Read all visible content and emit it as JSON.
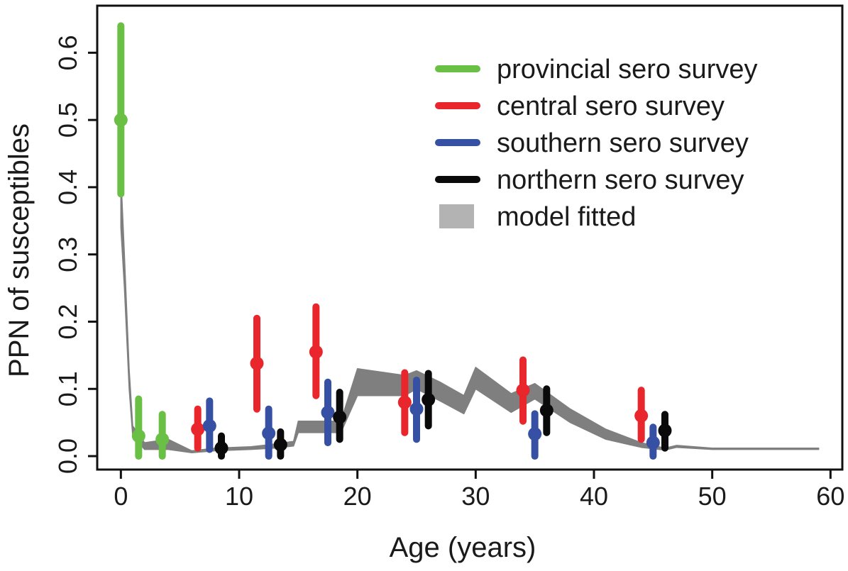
{
  "chart_data": {
    "type": "scatter",
    "title": "",
    "xlabel": "Age (years)",
    "ylabel": "PPN of susceptibles",
    "xlim": [
      -2,
      61
    ],
    "ylim": [
      -0.02,
      0.67
    ],
    "grid": false,
    "legend_position": "top-right",
    "x_ticks": [
      "0",
      "10",
      "20",
      "30",
      "40",
      "50",
      "60"
    ],
    "y_ticks": [
      "0.0",
      "0.1",
      "0.2",
      "0.3",
      "0.4",
      "0.5",
      "0.6"
    ],
    "series": [
      {
        "name": "provincial sero survey",
        "color": "#6abf45",
        "points": [
          {
            "x": 0,
            "y": 0.5,
            "lo": 0.39,
            "hi": 0.64
          },
          {
            "x": 1.5,
            "y": 0.03,
            "lo": 0.0,
            "hi": 0.085
          },
          {
            "x": 3.5,
            "y": 0.025,
            "lo": 0.0,
            "hi": 0.062
          }
        ]
      },
      {
        "name": "central sero survey",
        "color": "#e8262b",
        "points": [
          {
            "x": 6.5,
            "y": 0.04,
            "lo": 0.012,
            "hi": 0.07
          },
          {
            "x": 11.5,
            "y": 0.138,
            "lo": 0.07,
            "hi": 0.205
          },
          {
            "x": 16.5,
            "y": 0.155,
            "lo": 0.09,
            "hi": 0.222
          },
          {
            "x": 24,
            "y": 0.08,
            "lo": 0.035,
            "hi": 0.124
          },
          {
            "x": 34,
            "y": 0.098,
            "lo": 0.052,
            "hi": 0.143
          },
          {
            "x": 44,
            "y": 0.06,
            "lo": 0.025,
            "hi": 0.098
          }
        ]
      },
      {
        "name": "southern sero survey",
        "color": "#3651a3",
        "points": [
          {
            "x": 7.5,
            "y": 0.045,
            "lo": 0.01,
            "hi": 0.082
          },
          {
            "x": 12.5,
            "y": 0.034,
            "lo": 0.0,
            "hi": 0.07
          },
          {
            "x": 17.5,
            "y": 0.065,
            "lo": 0.02,
            "hi": 0.11
          },
          {
            "x": 25,
            "y": 0.07,
            "lo": 0.025,
            "hi": 0.113
          },
          {
            "x": 35,
            "y": 0.033,
            "lo": 0.0,
            "hi": 0.063
          },
          {
            "x": 45,
            "y": 0.02,
            "lo": 0.0,
            "hi": 0.043
          }
        ]
      },
      {
        "name": "northern sero survey",
        "color": "#0a0a0a",
        "points": [
          {
            "x": 8.5,
            "y": 0.012,
            "lo": 0.0,
            "hi": 0.03
          },
          {
            "x": 13.5,
            "y": 0.017,
            "lo": 0.0,
            "hi": 0.036
          },
          {
            "x": 18.5,
            "y": 0.058,
            "lo": 0.025,
            "hi": 0.095
          },
          {
            "x": 26,
            "y": 0.084,
            "lo": 0.045,
            "hi": 0.123
          },
          {
            "x": 36,
            "y": 0.068,
            "lo": 0.035,
            "hi": 0.1
          },
          {
            "x": 46,
            "y": 0.038,
            "lo": 0.012,
            "hi": 0.062
          }
        ]
      }
    ],
    "model": {
      "name": "model fitted",
      "color": "#7f7f7f",
      "legend_color": "#b3b3b3",
      "band": [
        {
          "x": 0,
          "lo": 0.34,
          "hi": 0.42
        },
        {
          "x": 0.3,
          "lo": 0.25,
          "hi": 0.3
        },
        {
          "x": 0.7,
          "lo": 0.1,
          "hi": 0.13
        },
        {
          "x": 1,
          "lo": 0.03,
          "hi": 0.045
        },
        {
          "x": 2,
          "lo": 0.01,
          "hi": 0.02
        },
        {
          "x": 4,
          "lo": 0.01,
          "hi": 0.025
        },
        {
          "x": 6,
          "lo": 0.005,
          "hi": 0.008
        },
        {
          "x": 8,
          "lo": 0.008,
          "hi": 0.012
        },
        {
          "x": 11,
          "lo": 0.01,
          "hi": 0.014
        },
        {
          "x": 13,
          "lo": 0.012,
          "hi": 0.018
        },
        {
          "x": 14.6,
          "lo": 0.015,
          "hi": 0.022
        },
        {
          "x": 15,
          "lo": 0.035,
          "hi": 0.052
        },
        {
          "x": 18.6,
          "lo": 0.035,
          "hi": 0.052
        },
        {
          "x": 20,
          "lo": 0.09,
          "hi": 0.13
        },
        {
          "x": 24,
          "lo": 0.09,
          "hi": 0.12
        },
        {
          "x": 25,
          "lo": 0.1,
          "hi": 0.127
        },
        {
          "x": 27,
          "lo": 0.082,
          "hi": 0.11
        },
        {
          "x": 29,
          "lo": 0.063,
          "hi": 0.09
        },
        {
          "x": 30,
          "lo": 0.1,
          "hi": 0.132
        },
        {
          "x": 33,
          "lo": 0.065,
          "hi": 0.093
        },
        {
          "x": 35,
          "lo": 0.085,
          "hi": 0.108
        },
        {
          "x": 38,
          "lo": 0.05,
          "hi": 0.07
        },
        {
          "x": 41,
          "lo": 0.025,
          "hi": 0.04
        },
        {
          "x": 44,
          "lo": 0.013,
          "hi": 0.02
        },
        {
          "x": 46,
          "lo": 0.009,
          "hi": 0.012
        },
        {
          "x": 47,
          "lo": 0.013,
          "hi": 0.016
        },
        {
          "x": 50,
          "lo": 0.01,
          "hi": 0.012
        },
        {
          "x": 59,
          "lo": 0.01,
          "hi": 0.012
        }
      ]
    }
  }
}
